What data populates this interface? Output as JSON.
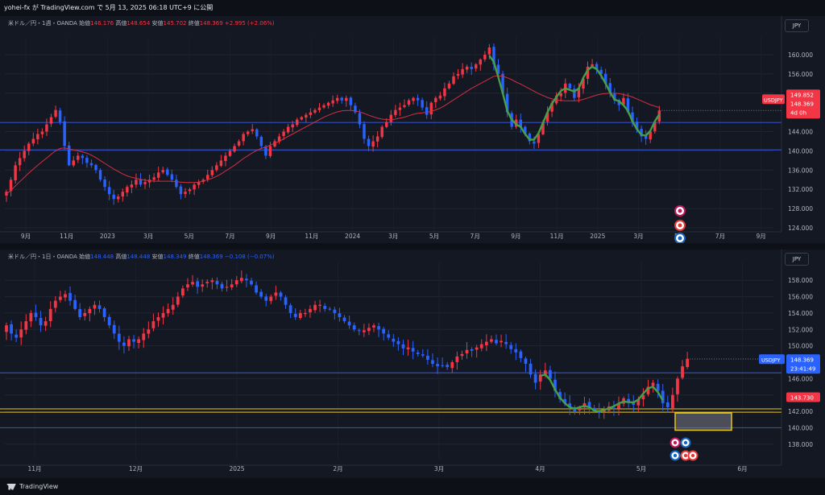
{
  "header": {
    "publish_text": "yohei-fx が TradingView.com で 5月 13, 2025 06:18 UTC+9 に公開"
  },
  "footer": {
    "brand": "TradingView"
  },
  "colors": {
    "up": "#f23645",
    "down": "#2962ff",
    "ma": "#d32f3f",
    "overlay": "#43a047",
    "hline": "#2e4fc4",
    "yellow": "#e6c619"
  },
  "chart_data": [
    {
      "type": "candlestick",
      "title": "米ドル／円・1週・OANDA",
      "ohlc_labels": {
        "o": "始値",
        "h": "高値",
        "l": "安値",
        "c": "終値"
      },
      "ohlc_values": {
        "o": "146.176",
        "h": "148.654",
        "l": "145.702",
        "c": "148.369"
      },
      "change": "+2.995 (+2.06%)",
      "currency": "JPY",
      "ylim": [
        124,
        162
      ],
      "y_ticks": [
        "160.000",
        "156.000",
        "152.000",
        "144.000",
        "140.000",
        "136.000",
        "132.000",
        "128.000",
        "124.000"
      ],
      "x_ticks": [
        "9月",
        "11月",
        "2023",
        "3月",
        "5月",
        "7月",
        "9月",
        "11月",
        "2024",
        "3月",
        "5月",
        "7月",
        "9月",
        "11月",
        "2025",
        "3月",
        "5月",
        "7月",
        "9月"
      ],
      "price_label": {
        "symbol": "USDJPY",
        "values": [
          "149.852",
          "148.369",
          "4d 0h"
        ]
      },
      "horizontal_lines": [
        145.9,
        140.2
      ],
      "close_series": [
        131.5,
        134,
        137,
        138.5,
        140,
        141.5,
        142.5,
        143.5,
        144,
        145.5,
        147,
        148.5,
        146,
        141,
        137,
        138,
        139,
        138.5,
        137.5,
        137,
        136,
        134,
        132.5,
        131,
        130,
        130.5,
        131.5,
        132.5,
        133,
        134,
        133,
        133.5,
        134,
        134.5,
        135.5,
        136,
        135,
        134,
        132.5,
        131,
        131.5,
        132,
        133,
        133.5,
        134,
        135,
        136,
        137,
        138,
        139,
        140,
        141,
        142,
        143.5,
        144,
        144.5,
        143,
        141,
        139,
        141,
        142,
        143,
        144,
        145,
        145.5,
        146.5,
        147,
        147.5,
        148,
        148.5,
        149,
        149.5,
        150,
        150.5,
        151,
        150.5,
        151,
        149.5,
        148,
        145.5,
        142.5,
        141,
        142,
        143,
        145,
        146,
        147.5,
        148.5,
        149,
        149.5,
        150.5,
        151,
        150.5,
        149,
        147.5,
        150,
        151,
        151.5,
        153,
        154,
        155.5,
        156,
        157,
        157.5,
        157,
        158,
        159,
        160,
        161.5,
        158,
        156,
        152,
        148,
        145,
        146.5,
        145,
        143.5,
        142,
        141.5,
        143.5,
        146,
        148,
        150,
        151.5,
        152,
        154,
        153,
        151,
        153,
        155,
        157.5,
        158,
        157,
        156,
        154,
        152,
        150.5,
        149.5,
        151,
        148,
        146,
        144.5,
        143,
        142.5,
        144,
        146,
        148.4
      ],
      "ma_series": [
        131,
        131.8,
        132.7,
        133.6,
        134.5,
        135.4,
        136.2,
        137,
        137.8,
        138.5,
        139.3,
        140,
        140.5,
        140.6,
        140.4,
        140.2,
        140,
        139.8,
        139.5,
        139.1,
        138.6,
        138,
        137.4,
        136.8,
        136.2,
        135.7,
        135.2,
        134.8,
        134.5,
        134.3,
        134.1,
        133.9,
        133.8,
        133.7,
        133.7,
        133.7,
        133.7,
        133.7,
        133.6,
        133.5,
        133.4,
        133.4,
        133.4,
        133.5,
        133.7,
        134,
        134.3,
        134.7,
        135.2,
        135.8,
        136.4,
        137,
        137.7,
        138.4,
        139,
        139.6,
        140.1,
        140.5,
        140.8,
        141.2,
        141.6,
        142,
        142.5,
        143,
        143.5,
        144,
        144.5,
        145,
        145.5,
        146,
        146.5,
        147,
        147.4,
        147.8,
        148.1,
        148.3,
        148.4,
        148.4,
        148.3,
        148.1,
        147.8,
        147.4,
        147.1,
        146.8,
        146.6,
        146.5,
        146.5,
        146.6,
        146.8,
        147,
        147.3,
        147.6,
        147.8,
        147.9,
        148,
        148.2,
        148.5,
        148.9,
        149.4,
        150,
        150.6,
        151.2,
        151.8,
        152.4,
        153,
        153.5,
        154,
        154.5,
        155,
        155.5,
        155.6,
        155.5,
        155.2,
        154.8,
        154.3,
        153.9,
        153.4,
        152.9,
        152.4,
        151.9,
        151.5,
        151.1,
        150.8,
        150.6,
        150.5,
        150.4,
        150.4,
        150.4,
        150.5,
        150.7,
        151,
        151.3,
        151.6,
        151.8,
        151.9,
        152,
        152,
        151.9,
        151.7,
        151.5,
        151.2,
        150.8,
        150.4,
        150,
        149.6,
        149.3,
        149
      ]
    },
    {
      "type": "candlestick",
      "title": "米ドル／円・1日・OANDA",
      "ohlc_labels": {
        "o": "始値",
        "h": "高値",
        "l": "安値",
        "c": "終値"
      },
      "ohlc_values": {
        "o": "148.448",
        "h": "148.448",
        "l": "148.349",
        "c": "148.369"
      },
      "change": "−0.108 (−0.07%)",
      "currency": "JPY",
      "ylim": [
        137,
        159.2
      ],
      "y_ticks": [
        "158.000",
        "156.000",
        "154.000",
        "152.000",
        "150.000",
        "146.000",
        "144.000",
        "142.000",
        "140.000",
        "138.000"
      ],
      "x_ticks": [
        "11月",
        "12月",
        "2025",
        "2月",
        "3月",
        "4月",
        "5月",
        "6月"
      ],
      "price_label": {
        "symbol": "USDJPY",
        "values": [
          "148.369",
          "23:41:49"
        ]
      },
      "secondary_label": "143.730",
      "horizontal_lines": [
        146.7,
        140
      ],
      "yellow_lines": [
        142.3,
        141.9
      ],
      "close_series": [
        152.5,
        151.5,
        151,
        152,
        153,
        154,
        153.5,
        152.5,
        153,
        154.5,
        155.5,
        156,
        156.3,
        155.5,
        154.5,
        153.5,
        154,
        154.5,
        155,
        154.5,
        153.5,
        152.5,
        151.5,
        150.5,
        150,
        150.8,
        150.5,
        150.8,
        151.5,
        152,
        153,
        153.5,
        154,
        154.5,
        155,
        156,
        157,
        157.5,
        157.8,
        157.2,
        157.5,
        157.8,
        158,
        157.5,
        157,
        157.2,
        157.5,
        158,
        158.3,
        158,
        157.5,
        156.5,
        156,
        155.5,
        156,
        156.5,
        156,
        155,
        154,
        153.5,
        154,
        154,
        154.5,
        155,
        155,
        154.5,
        154.5,
        154,
        153.5,
        153,
        152.5,
        152,
        151.8,
        151.9,
        152.2,
        152.5,
        152,
        151.5,
        151,
        150.5,
        150.2,
        149.7,
        149.8,
        149.3,
        149,
        148.8,
        148.3,
        147.8,
        147.5,
        147.6,
        147.4,
        148,
        148.7,
        149,
        149.5,
        149.4,
        149.8,
        150.2,
        150.5,
        150.8,
        150.3,
        150.6,
        150.2,
        149.6,
        149.2,
        148.5,
        147.8,
        146.5,
        145.5,
        146.5,
        147,
        146,
        144.5,
        143.5,
        143,
        142.5,
        142,
        142.5,
        143,
        142.5,
        142,
        141.8,
        142.2,
        142.6,
        142.3,
        143,
        143.6,
        143,
        142.8,
        143.5,
        144,
        145,
        145.5,
        144.5,
        143,
        142.5,
        144,
        146,
        147.5,
        148.4
      ]
    }
  ]
}
